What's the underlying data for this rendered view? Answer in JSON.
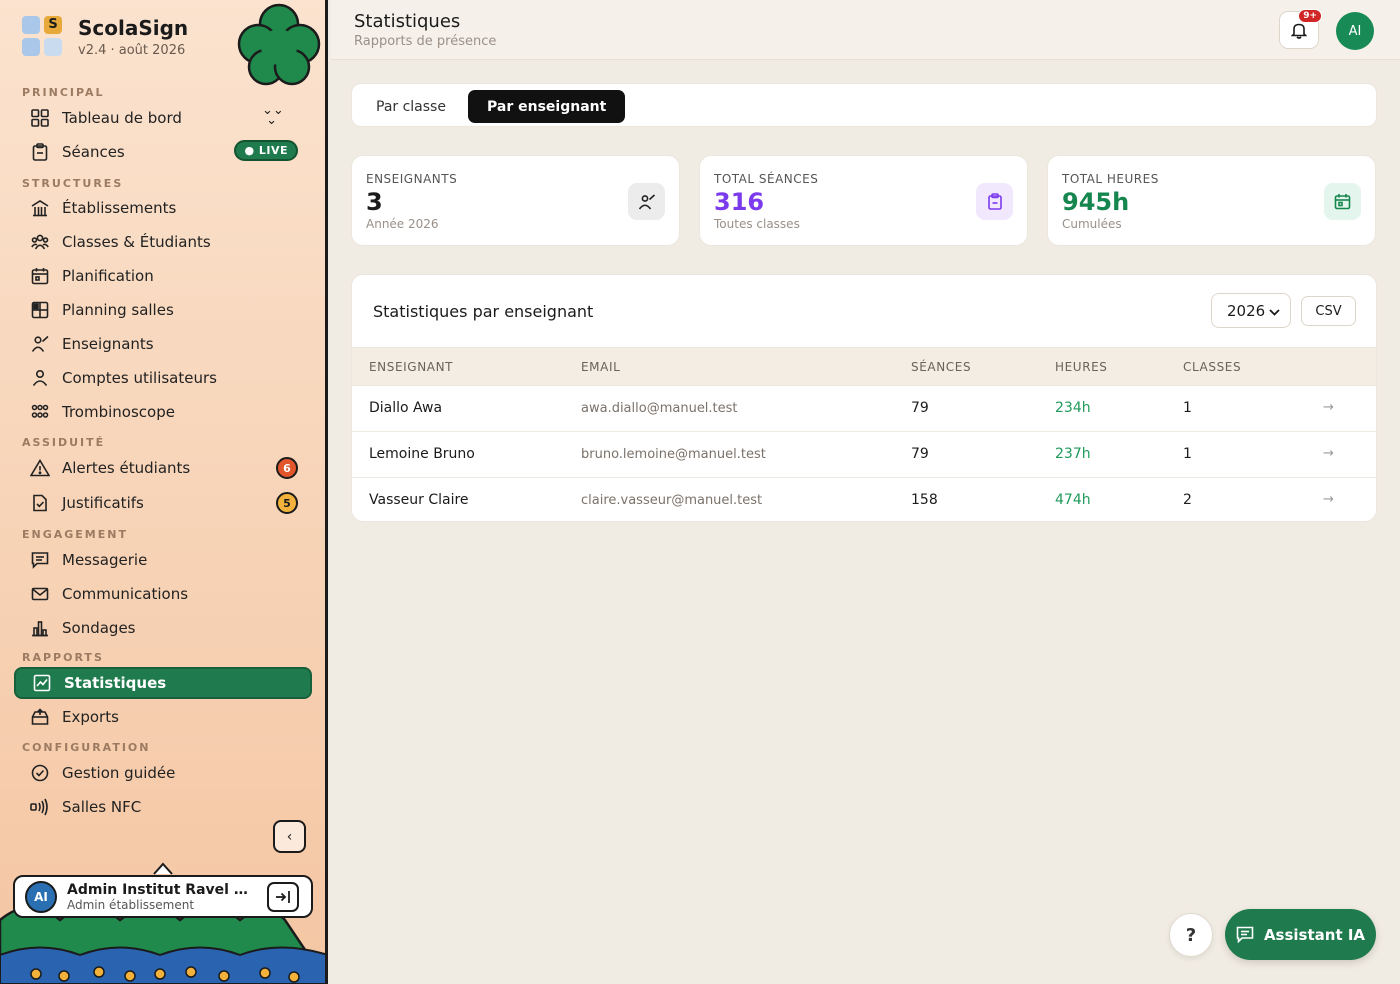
{
  "app": {
    "name": "ScolaSign",
    "version": "v2.4 · août 2026"
  },
  "sidebar": {
    "sections": {
      "principal": "PRINCIPAL",
      "structures": "STRUCTURES",
      "assiduite": "ASSIDUITÉ",
      "engagement": "ENGAGEMENT",
      "rapports": "RAPPORTS",
      "configuration": "CONFIGURATION"
    },
    "items": {
      "tableau": "Tableau de bord",
      "seances": "Séances",
      "seances_badge": "● LIVE",
      "etablissements": "Établissements",
      "classes": "Classes & Étudiants",
      "planification": "Planification",
      "planning_salles": "Planning salles",
      "enseignants": "Enseignants",
      "comptes": "Comptes utilisateurs",
      "trombinoscope": "Trombinoscope",
      "alertes": "Alertes étudiants",
      "alertes_count": "6",
      "justificatifs": "Justificatifs",
      "justificatifs_count": "5",
      "messagerie": "Messagerie",
      "communications": "Communications",
      "sondages": "Sondages",
      "statistiques": "Statistiques",
      "exports": "Exports",
      "gestion": "Gestion guidée",
      "salles_nfc": "Salles NFC"
    },
    "user": {
      "initials": "AI",
      "name": "Admin Institut Ravel For...",
      "role": "Admin établissement"
    }
  },
  "header": {
    "title": "Statistiques",
    "subtitle": "Rapports de présence",
    "notification_badge": "9+",
    "avatar_initials": "AI"
  },
  "tabs": {
    "by_class": "Par classe",
    "by_teacher": "Par enseignant"
  },
  "stats": [
    {
      "label": "ENSEIGNANTS",
      "value": "3",
      "note": "Année 2026",
      "color": "#1b1b1b",
      "icon_bg": "#ececec"
    },
    {
      "label": "TOTAL SÉANCES",
      "value": "316",
      "note": "Toutes classes",
      "color": "#7c3aed",
      "icon_bg": "#f1e8fd"
    },
    {
      "label": "TOTAL HEURES",
      "value": "945h",
      "note": "Cumulées",
      "color": "#16864f",
      "icon_bg": "#e3f5ec"
    }
  ],
  "table": {
    "title": "Statistiques par enseignant",
    "year": "2026",
    "csv_label": "CSV",
    "headers": {
      "teacher": "ENSEIGNANT",
      "email": "EMAIL",
      "sessions": "SÉANCES",
      "hours": "HEURES",
      "classes": "CLASSES"
    },
    "rows": [
      {
        "name": "Diallo Awa",
        "email": "awa.diallo@manuel.test",
        "sessions": "79",
        "hours": "234h",
        "classes": "1",
        "arrow": "→"
      },
      {
        "name": "Lemoine Bruno",
        "email": "bruno.lemoine@manuel.test",
        "sessions": "79",
        "hours": "237h",
        "classes": "1",
        "arrow": "→"
      },
      {
        "name": "Vasseur Claire",
        "email": "claire.vasseur@manuel.test",
        "sessions": "158",
        "hours": "474h",
        "classes": "2",
        "arrow": "→"
      }
    ]
  },
  "floating": {
    "help": "?",
    "assistant": "Assistant IA"
  }
}
